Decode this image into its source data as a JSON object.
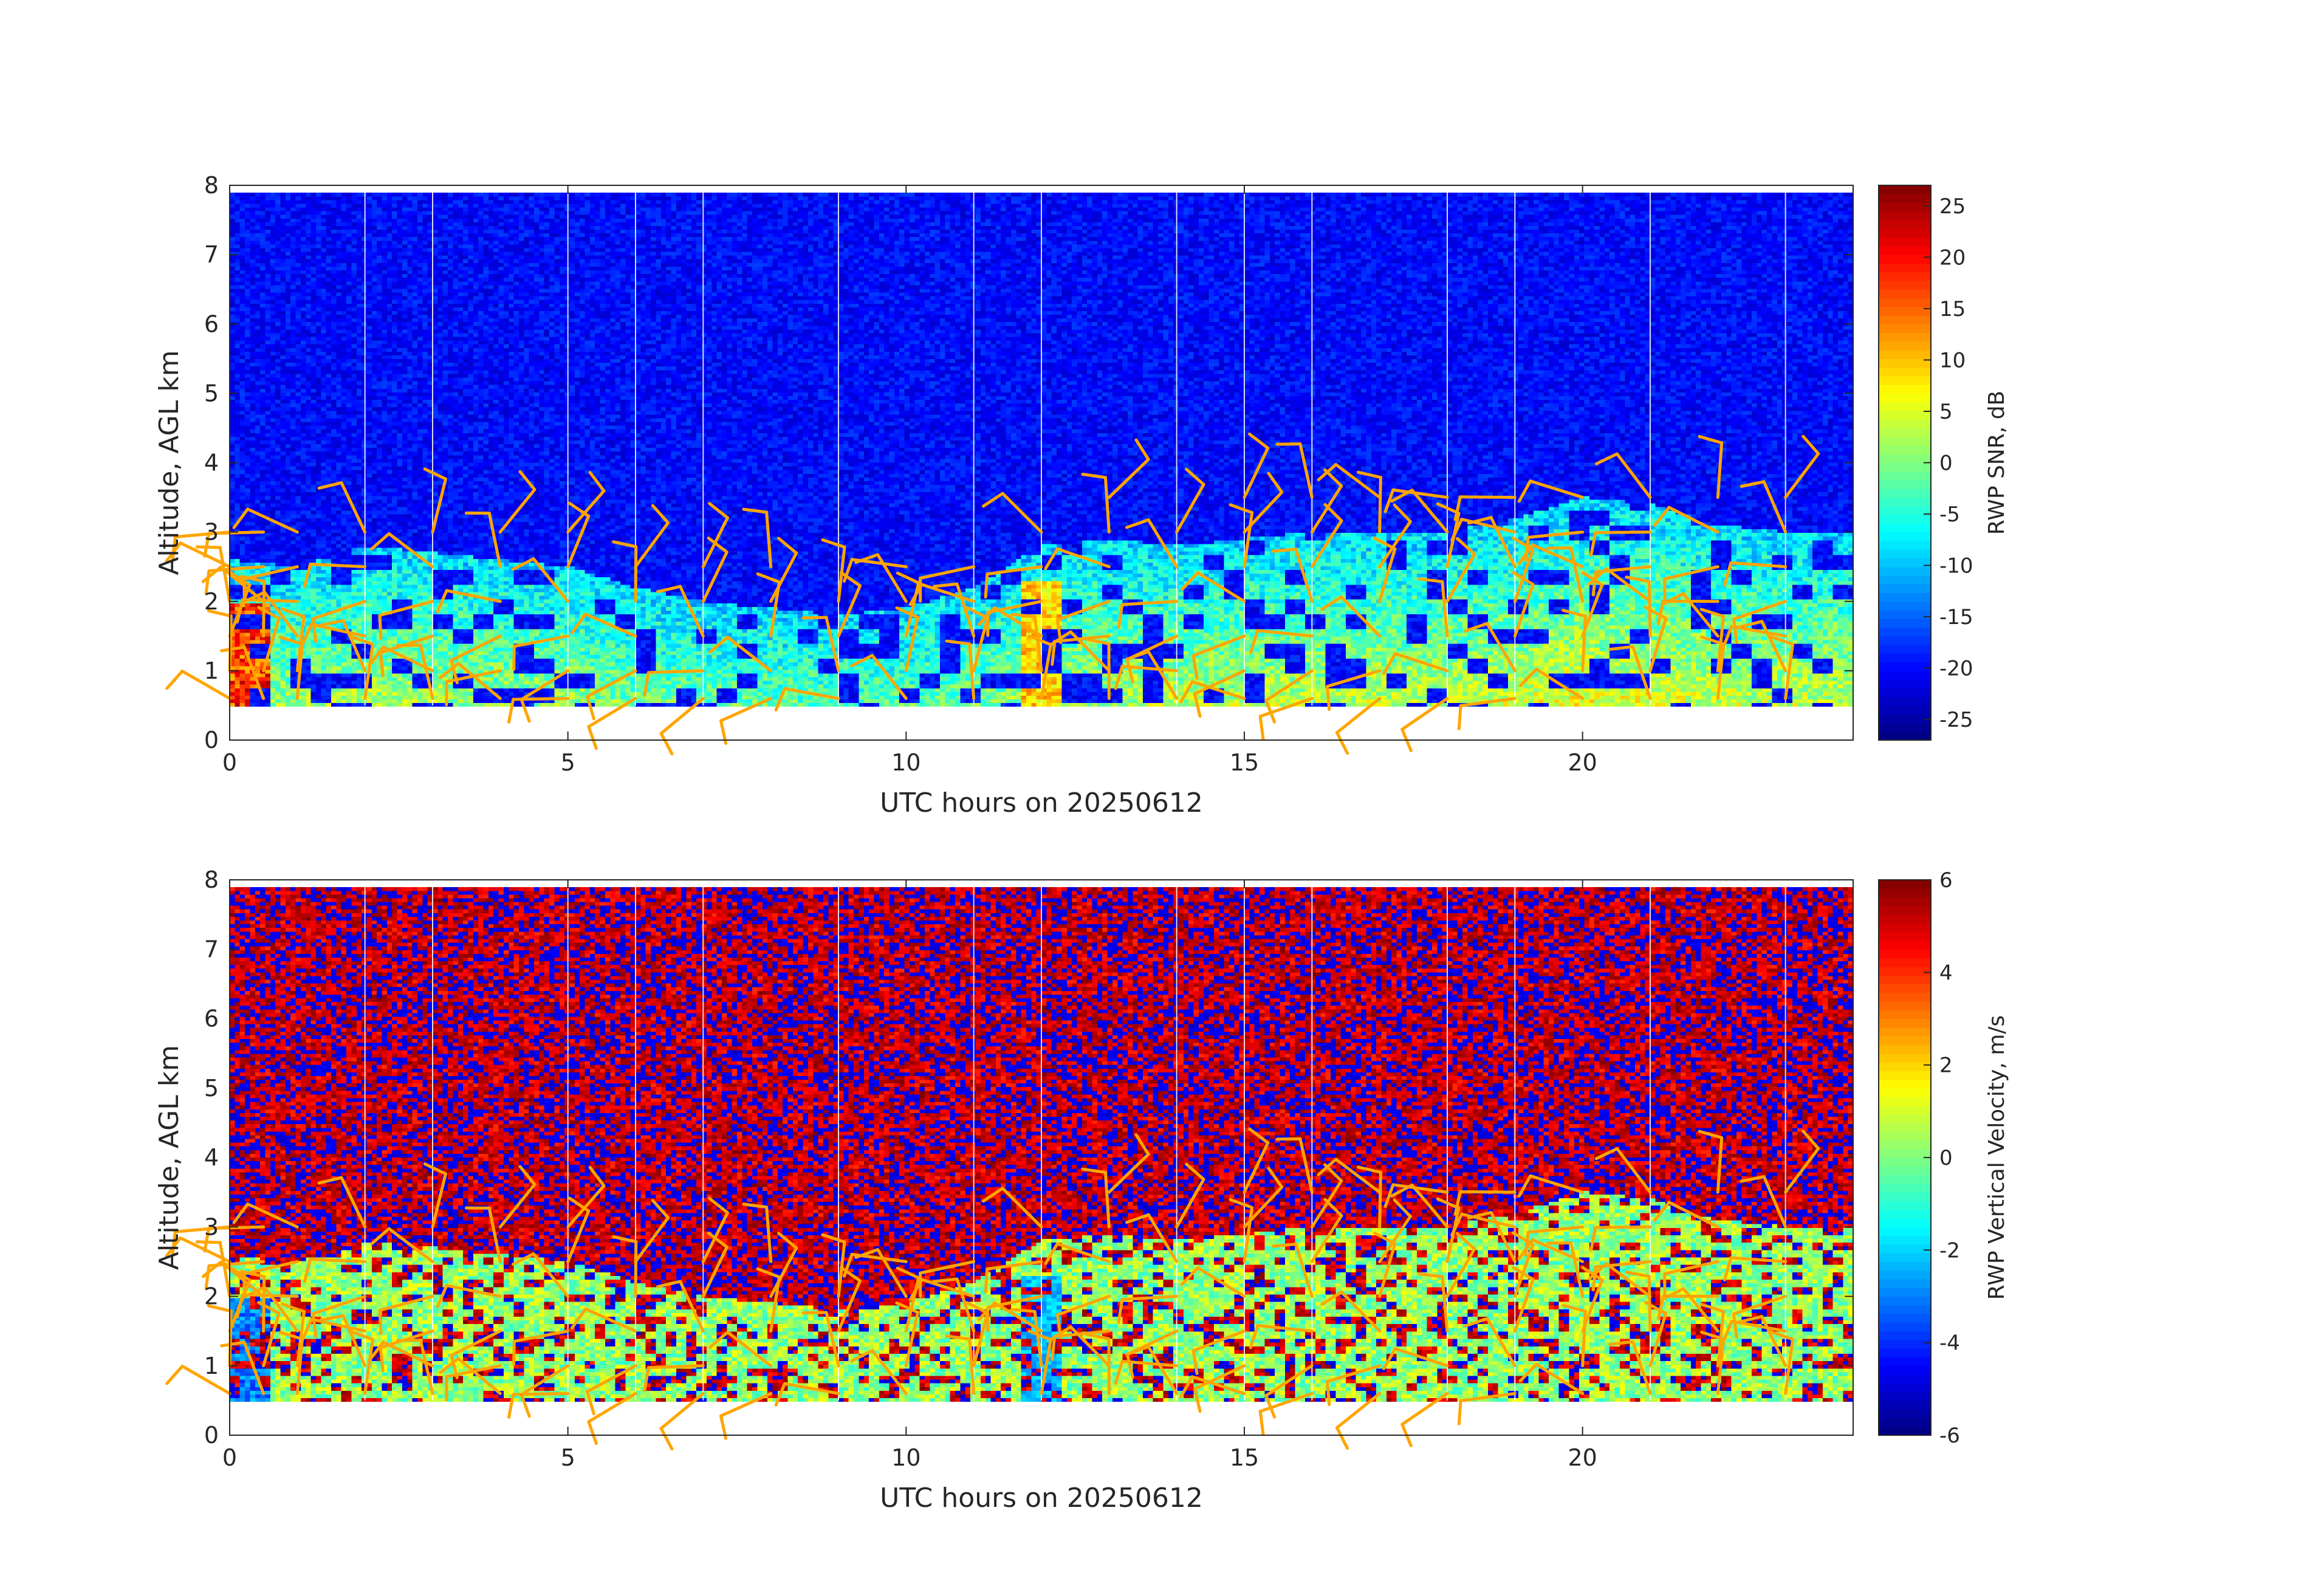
{
  "chart_data": [
    {
      "type": "heatmap",
      "title": "",
      "xlabel": "UTC hours on 20250612",
      "ylabel": "Altitude, AGL km",
      "xlim": [
        0,
        24
      ],
      "ylim": [
        0,
        8
      ],
      "xticks": [
        0,
        5,
        10,
        15,
        20
      ],
      "yticks": [
        0,
        1,
        2,
        3,
        4,
        5,
        6,
        7,
        8
      ],
      "data_range_km": [
        0.5,
        7.9
      ],
      "colormap": "jet",
      "colorbar": {
        "label": "RWP SNR, dB",
        "range": [
          -27,
          27
        ],
        "ticks": [
          25,
          20,
          15,
          10,
          5,
          0,
          -5,
          -10,
          -15,
          -20,
          -25
        ]
      },
      "field": "snr",
      "overlay": "wind barbs",
      "overlay_color": "#ffa500",
      "gap_line_hours": [
        2.0,
        3.0,
        5.0,
        6.0,
        7.0,
        9.0,
        11.0,
        12.0,
        14.0,
        15.0,
        16.0,
        18.0,
        19.0,
        21.0,
        23.0
      ]
    },
    {
      "type": "heatmap",
      "title": "",
      "xlabel": "UTC hours on 20250612",
      "ylabel": "Altitude, AGL km",
      "xlim": [
        0,
        24
      ],
      "ylim": [
        0,
        8
      ],
      "xticks": [
        0,
        5,
        10,
        15,
        20
      ],
      "yticks": [
        0,
        1,
        2,
        3,
        4,
        5,
        6,
        7,
        8
      ],
      "data_range_km": [
        0.5,
        7.9
      ],
      "colormap": "jet",
      "colorbar": {
        "label": "RWP Vertical Velocity, m/s",
        "range": [
          -6,
          6
        ],
        "ticks": [
          6,
          4,
          2,
          0,
          -2,
          -4,
          -6
        ]
      },
      "field": "vertical_velocity",
      "overlay": "wind barbs",
      "overlay_color": "#ffa500",
      "gap_line_hours": [
        2.0,
        3.0,
        5.0,
        6.0,
        7.0,
        9.0,
        11.0,
        12.0,
        14.0,
        15.0,
        16.0,
        18.0,
        19.0,
        21.0,
        23.0
      ]
    }
  ],
  "wind_barbs": {
    "times_h": [
      0.0,
      0.5,
      1.0,
      2.0,
      3.0,
      4.0,
      5.0,
      6.0,
      7.0,
      8.0,
      9.0,
      10.0,
      11.0,
      12.0,
      13.0,
      14.0,
      15.0,
      16.0,
      17.0,
      18.0,
      19.0,
      20.0,
      21.0,
      22.0,
      23.0
    ],
    "heights_km": [
      0.6,
      1.0,
      1.5,
      2.0,
      2.5,
      3.0,
      3.5
    ]
  }
}
